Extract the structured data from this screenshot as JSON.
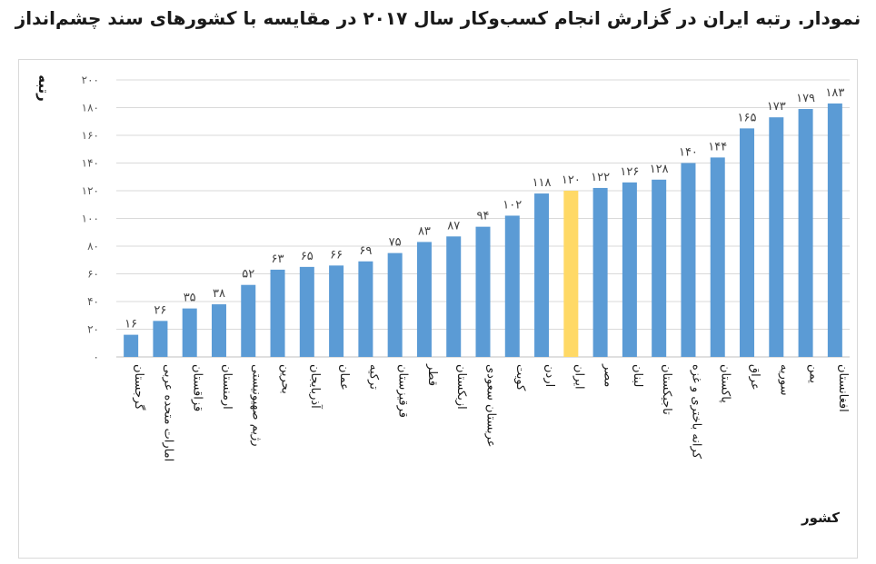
{
  "title": "نمودار. رتبه ایران در گزارش انجام کسب‌وکار سال ۲۰۱۷ در مقایسه با کشورهای سند چشم‌انداز",
  "chart_data": {
    "type": "bar",
    "xlabel": "کشور",
    "ylabel": "رتبه",
    "ylim": [
      0,
      200
    ],
    "yticks": [
      "۰",
      "۲۰",
      "۴۰",
      "۶۰",
      "۸۰",
      "۱۰۰",
      "۱۲۰",
      "۱۴۰",
      "۱۶۰",
      "۱۸۰",
      "۲۰۰"
    ],
    "ytick_values": [
      0,
      20,
      40,
      60,
      80,
      100,
      120,
      140,
      160,
      180,
      200
    ],
    "grid": true,
    "categories": [
      "گرجستان",
      "امارات متحده عربی",
      "قزاقستان",
      "ارمنستان",
      "رژیم صهیونیستی",
      "بحرین",
      "آذربایجان",
      "عمان",
      "ترکیه",
      "قرقیزستان",
      "قطر",
      "ازبکستان",
      "عربستان سعودی",
      "کویت",
      "اردن",
      "ایران",
      "مصر",
      "لبنان",
      "تاجیکستان",
      "کرانه باختری و غزه",
      "پاکستان",
      "عراق",
      "سوریه",
      "یمن",
      "افغانستان"
    ],
    "values": [
      16,
      26,
      35,
      38,
      52,
      63,
      65,
      66,
      69,
      75,
      83,
      87,
      94,
      102,
      118,
      120,
      122,
      126,
      128,
      140,
      144,
      165,
      173,
      179,
      183
    ],
    "value_labels": [
      "۱۶",
      "۲۶",
      "۳۵",
      "۳۸",
      "۵۲",
      "۶۳",
      "۶۵",
      "۶۶",
      "۶۹",
      "۷۵",
      "۸۳",
      "۸۷",
      "۹۴",
      "۱۰۲",
      "۱۱۸",
      "۱۲۰",
      "۱۲۲",
      "۱۲۶",
      "۱۲۸",
      "۱۴۰",
      "۱۴۴",
      "۱۶۵",
      "۱۷۳",
      "۱۷۹",
      "۱۸۳"
    ],
    "bar_color": "#5b9bd5",
    "highlight_color": "#ffd966",
    "highlight_category": "ایران"
  }
}
